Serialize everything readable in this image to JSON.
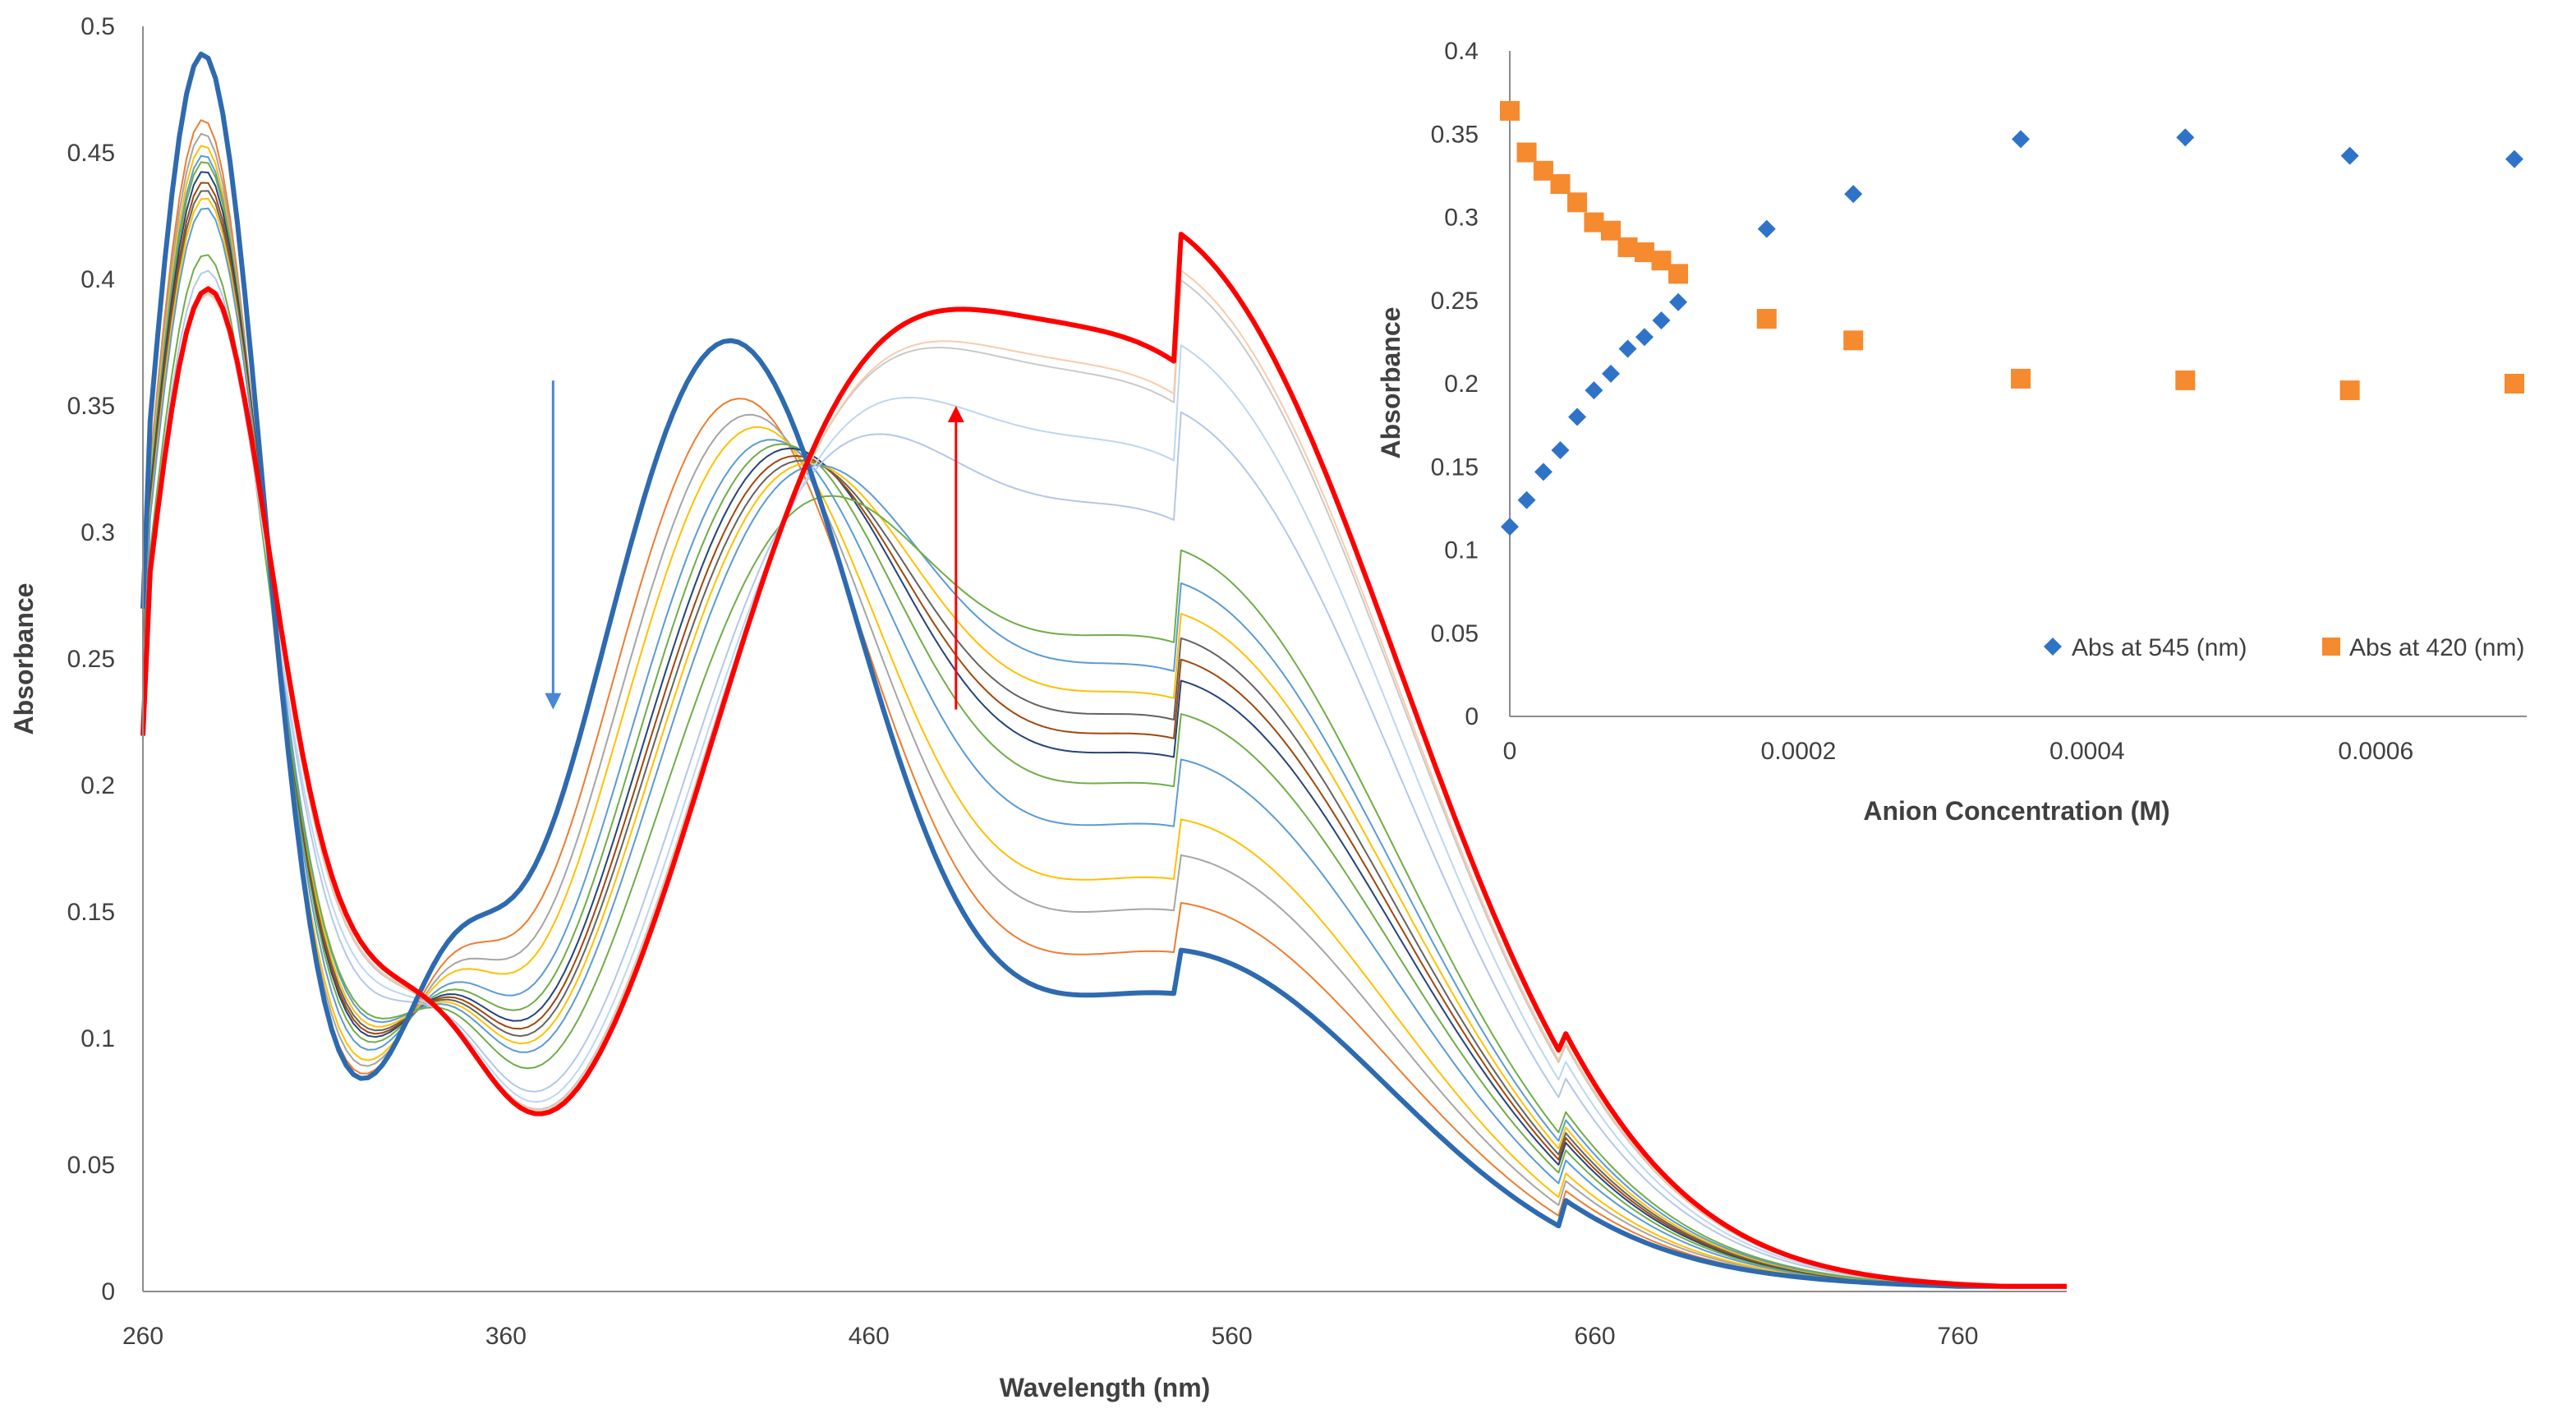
{
  "chart_data": [
    {
      "type": "line",
      "xlabel": "Wavelength (nm)",
      "ylabel": "Absorbance",
      "xlim": [
        260,
        790
      ],
      "ylim": [
        0,
        0.5
      ],
      "xticks": [
        "260",
        "360",
        "460",
        "560",
        "660",
        "760"
      ],
      "yticks": [
        "0",
        "0.05",
        "0.1",
        "0.15",
        "0.2",
        "0.25",
        "0.3",
        "0.35",
        "0.4",
        "0.45",
        "0.5"
      ],
      "grid": false,
      "legend": "none",
      "colors": {
        "start": "#2e6ab0",
        "end": "#ff0000",
        "down_arrow": "#4a86d6",
        "up_arrow": "#ff0000"
      },
      "annotations": [
        {
          "type": "arrow",
          "direction": "down",
          "x": 373,
          "y_from": 0.36,
          "y_to": 0.23
        },
        {
          "type": "arrow",
          "direction": "up",
          "x": 484,
          "y_from": 0.23,
          "y_to": 0.35
        }
      ],
      "series": [
        {
          "role": "start",
          "color": "#2e6ab0",
          "width": 6,
          "peak1_x": 276,
          "peak1": 0.481,
          "peak2": 0.364,
          "peak3": 0.116,
          "iso_low": 0.107,
          "shoulder": 0.115
        },
        {
          "role": "titration",
          "color": "#ed7d31",
          "width": 2,
          "peak1": 0.453,
          "peak2": 0.338,
          "peak3": 0.132
        },
        {
          "role": "titration",
          "color": "#a5a5a5",
          "width": 2,
          "peak1": 0.446,
          "peak2": 0.328,
          "peak3": 0.148
        },
        {
          "role": "titration",
          "color": "#ffc000",
          "width": 2,
          "peak1": 0.44,
          "peak2": 0.32,
          "peak3": 0.16
        },
        {
          "role": "titration",
          "color": "#5b9bd5",
          "width": 2,
          "peak1": 0.434,
          "peak2": 0.309,
          "peak3": 0.18
        },
        {
          "role": "titration",
          "color": "#70ad47",
          "width": 2,
          "peak1": 0.43,
          "peak2": 0.302,
          "peak3": 0.195
        },
        {
          "role": "titration",
          "color": "#264478",
          "width": 2,
          "peak1": 0.425,
          "peak2": 0.296,
          "peak3": 0.206
        },
        {
          "role": "titration",
          "color": "#9e480e",
          "width": 2,
          "peak1": 0.42,
          "peak2": 0.29,
          "peak3": 0.213
        },
        {
          "role": "titration",
          "color": "#636363",
          "width": 2,
          "peak1": 0.416,
          "peak2": 0.285,
          "peak3": 0.22
        },
        {
          "role": "titration",
          "color": "#ffc000",
          "width": 2,
          "peak1": 0.412,
          "peak2": 0.28,
          "peak3": 0.228
        },
        {
          "role": "titration",
          "color": "#5b9bd5",
          "width": 2,
          "peak1": 0.407,
          "peak2": 0.274,
          "peak3": 0.238
        },
        {
          "role": "titration",
          "color": "#70ad47",
          "width": 2,
          "peak1": 0.387,
          "peak2": 0.255,
          "peak3": 0.249
        },
        {
          "role": "titration",
          "color": "#b4c7e7",
          "width": 2,
          "peak1": 0.376,
          "peak2": 0.248,
          "peak3": 0.293
        },
        {
          "role": "titration",
          "color": "#bdd7ee",
          "width": 2,
          "peak1": 0.365,
          "peak2": 0.243,
          "peak3": 0.314
        },
        {
          "role": "titration",
          "color": "#c9c9c9",
          "width": 2,
          "peak1": 0.363,
          "peak2": 0.242,
          "peak3": 0.334
        },
        {
          "role": "titration",
          "color": "#f8cbad",
          "width": 2,
          "peak1": 0.362,
          "peak2": 0.241,
          "peak3": 0.337
        },
        {
          "role": "end",
          "color": "#ff0000",
          "width": 6,
          "peak1": 0.363,
          "peak2": 0.241,
          "peak3": 0.348,
          "iso_low": 0.07,
          "shoulder": 0.229
        }
      ]
    },
    {
      "type": "scatter",
      "xlabel": "Anion Concentration (M)",
      "ylabel": "Absorbance",
      "xlim": [
        0,
        0.0007
      ],
      "ylim": [
        0,
        0.4
      ],
      "xticks": [
        "0",
        "0.0002",
        "0.0004",
        "0.0006"
      ],
      "yticks": [
        "0",
        "0.05",
        "0.1",
        "0.15",
        "0.2",
        "0.25",
        "0.3",
        "0.35",
        "0.4"
      ],
      "grid": false,
      "legend": "bottom-right",
      "series": [
        {
          "name": "Abs at 545 (nm)",
          "marker": "diamond",
          "color": "#2f73c8",
          "x": [
            0,
            1.17e-05,
            2.33e-05,
            3.5e-05,
            4.67e-05,
            5.83e-05,
            7e-05,
            8.17e-05,
            9.33e-05,
            0.000105,
            0.0001167,
            0.000178,
            0.000238,
            0.000354,
            0.000468,
            0.000582,
            0.000696
          ],
          "y": [
            0.114,
            0.13,
            0.147,
            0.16,
            0.18,
            0.196,
            0.206,
            0.221,
            0.228,
            0.238,
            0.249,
            0.293,
            0.314,
            0.347,
            0.348,
            0.337,
            0.335
          ]
        },
        {
          "name": "Abs at 420 (nm)",
          "marker": "square",
          "color": "#f58a2f",
          "x": [
            0,
            1.17e-05,
            2.33e-05,
            3.5e-05,
            4.67e-05,
            5.83e-05,
            7e-05,
            8.17e-05,
            9.33e-05,
            0.000105,
            0.0001167,
            0.000178,
            0.000238,
            0.000354,
            0.000468,
            0.000582,
            0.000696
          ],
          "y": [
            0.364,
            0.339,
            0.328,
            0.32,
            0.309,
            0.297,
            0.292,
            0.282,
            0.279,
            0.274,
            0.266,
            0.239,
            0.226,
            0.203,
            0.202,
            0.196,
            0.2
          ]
        }
      ]
    }
  ]
}
